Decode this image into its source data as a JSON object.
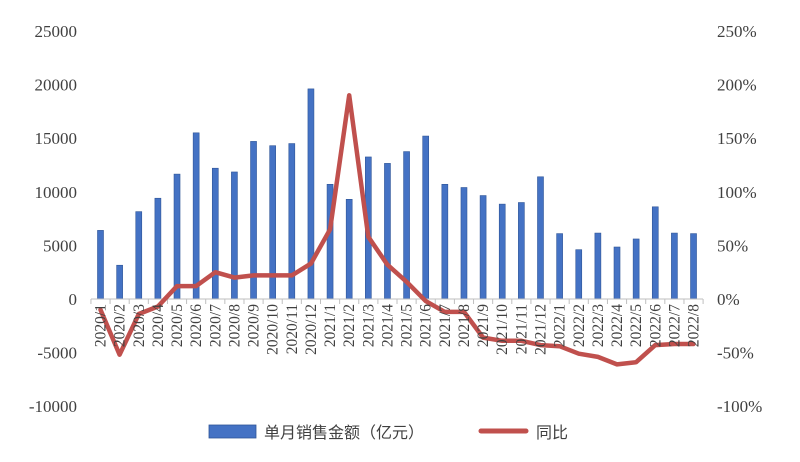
{
  "chart_data": {
    "type": "bar+line",
    "title": "",
    "xlabel": "",
    "ylabel_left": "",
    "ylabel_right": "",
    "categories": [
      "2020/1",
      "2020/2",
      "2020/3",
      "2020/4",
      "2020/5",
      "2020/6",
      "2020/7",
      "2020/8",
      "2020/9",
      "2020/10",
      "2020/11",
      "2020/12",
      "2021/1",
      "2021/2",
      "2021/3",
      "2021/4",
      "2021/5",
      "2021/6",
      "2021/7",
      "2021/8",
      "2021/9",
      "2021/10",
      "2021/11",
      "2021/12",
      "2022/1",
      "2022/2",
      "2022/3",
      "2022/4",
      "2022/5",
      "2022/6",
      "2022/7",
      "2022/8"
    ],
    "series": [
      {
        "name": "单月销售金额（亿元）",
        "type": "bar",
        "axis": "left",
        "color": "#4472C4",
        "values": [
          6400,
          3150,
          8150,
          9400,
          11650,
          15500,
          12200,
          11850,
          14700,
          14300,
          14500,
          19600,
          10700,
          9300,
          13250,
          12650,
          13750,
          15200,
          10700,
          10400,
          9650,
          8850,
          9000,
          11400,
          6100,
          4600,
          6150,
          4850,
          5600,
          8600,
          6150,
          6100
        ]
      },
      {
        "name": "同比",
        "type": "line",
        "axis": "right",
        "color": "#C0504D",
        "unit": "%",
        "values": [
          -10,
          -52,
          -14,
          -7,
          12,
          12,
          25,
          20,
          22,
          22,
          22,
          33,
          65,
          190,
          58,
          32,
          16,
          -2,
          -12,
          -12,
          -36,
          -39,
          -39,
          -43,
          -44,
          -51,
          -54,
          -61,
          -59,
          -43,
          -42,
          -42
        ]
      }
    ],
    "left_axis": {
      "min": -10000,
      "max": 25000,
      "step": 5000,
      "ticks": [
        "25000",
        "20000",
        "15000",
        "10000",
        "5000",
        "0",
        "-5000",
        "-10000"
      ]
    },
    "right_axis": {
      "min": -100,
      "max": 250,
      "step": 50,
      "ticks": [
        "250%",
        "200%",
        "150%",
        "100%",
        "50%",
        "0%",
        "-50%",
        "-100%"
      ]
    },
    "grid": false,
    "legend_position": "bottom"
  },
  "legend": {
    "bar_label": "单月销售金额（亿元）",
    "line_label": "同比"
  }
}
